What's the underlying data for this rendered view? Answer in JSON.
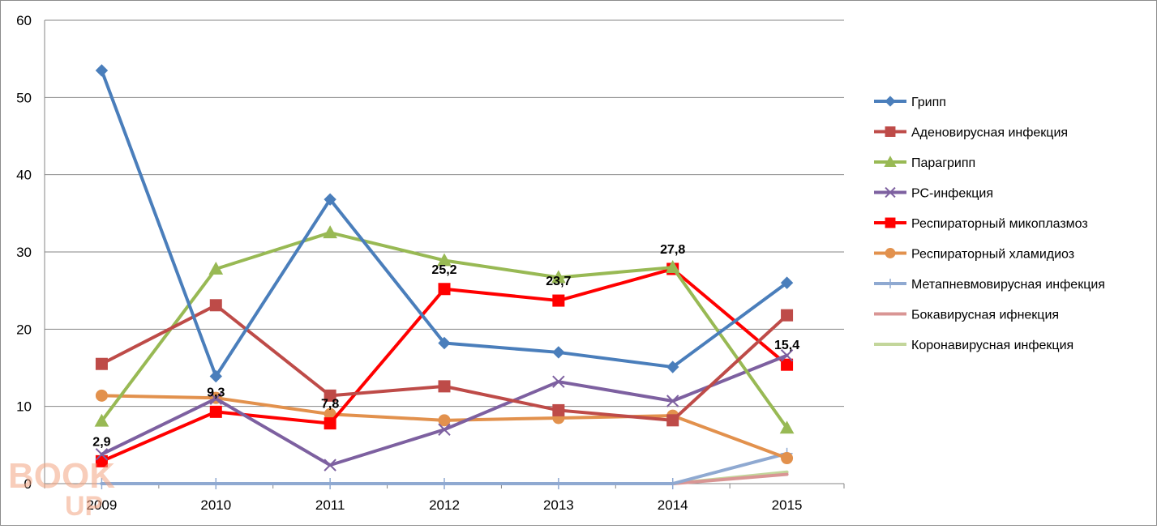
{
  "chart_data": {
    "type": "line",
    "title": "",
    "xlabel": "",
    "ylabel": "",
    "ylim": [
      0,
      60
    ],
    "y_ticks": [
      0,
      10,
      20,
      30,
      40,
      50,
      60
    ],
    "grid": "horizontal",
    "legend_position": "right",
    "categories": [
      "2009",
      "2010",
      "2011",
      "2012",
      "2013",
      "2014",
      "2015"
    ],
    "series": [
      {
        "name": "Грипп",
        "color": "#4a7ebb",
        "marker": "diamond",
        "values": [
          53.5,
          13.9,
          36.8,
          18.2,
          17.0,
          15.1,
          26.0
        ]
      },
      {
        "name": "Аденовирусная инфекция",
        "color": "#be4b48",
        "marker": "square",
        "values": [
          15.5,
          23.1,
          11.4,
          12.6,
          9.5,
          8.2,
          21.8
        ]
      },
      {
        "name": "Парагрипп",
        "color": "#98b954",
        "marker": "triangle",
        "values": [
          8.1,
          27.8,
          32.5,
          28.9,
          26.7,
          28.0,
          7.2
        ]
      },
      {
        "name": "РС-инфекция",
        "color": "#7d60a0",
        "marker": "x",
        "values": [
          3.8,
          11.0,
          2.4,
          7.0,
          13.2,
          10.7,
          16.6
        ]
      },
      {
        "name": "Респираторный микоплазмоз",
        "color": "#ff0000",
        "marker": "square",
        "values": [
          2.9,
          9.3,
          7.8,
          25.2,
          23.7,
          27.8,
          15.4
        ],
        "data_labels": [
          "2,9",
          "9,3",
          "7,8",
          "25,2",
          "23,7",
          "27,8",
          "15,4"
        ]
      },
      {
        "name": "Респираторный хламидиоз",
        "color": "#e2914d",
        "marker": "circle",
        "values": [
          11.4,
          11.1,
          9.0,
          8.2,
          8.5,
          8.8,
          3.3
        ]
      },
      {
        "name": "Метапневмовирусная инфекция",
        "color": "#8fa9d1",
        "marker": "plus",
        "values": [
          0,
          0,
          0,
          0,
          0,
          0,
          3.9
        ]
      },
      {
        "name": "Бокавирусная ифнекция",
        "color": "#d99594",
        "marker": "none",
        "values": [
          0,
          0,
          0,
          0,
          0,
          0,
          1.2
        ]
      },
      {
        "name": "Коронавирусная инфекция",
        "color": "#c3d69b",
        "marker": "none",
        "values": [
          0,
          0,
          0,
          0,
          0,
          0,
          1.5
        ]
      }
    ]
  },
  "watermark": {
    "text_top": "BOOK",
    "text_bottom": "UP"
  }
}
